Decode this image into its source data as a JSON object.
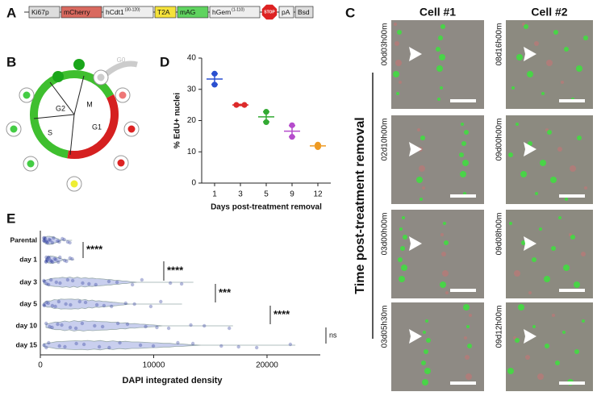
{
  "panel_labels": [
    "A",
    "B",
    "C",
    "D",
    "E"
  ],
  "construct": {
    "parts": [
      {
        "label": "Ki67p"
      },
      {
        "label": "mCherry"
      },
      {
        "label": "hCdt1",
        "sup": "(30-120)"
      },
      {
        "label": "T2A"
      },
      {
        "label": "mAG"
      },
      {
        "label": "hGem",
        "sup": "(1-110)"
      },
      {
        "label": "STOP"
      },
      {
        "label": "pA"
      },
      {
        "label": "Bsd"
      }
    ]
  },
  "cell_cycle": {
    "phases": [
      "G0",
      "G2",
      "M",
      "S",
      "G1"
    ]
  },
  "timelapse": {
    "axis_label": "Time post-treatment removal",
    "columns": [
      {
        "title": "Cell #1",
        "times": [
          "00d03h00m",
          "02d10h00m",
          "03d00h00m",
          "03d05h30m"
        ]
      },
      {
        "title": "Cell #2",
        "times": [
          "08d16h00m",
          "09d00h00m",
          "09d08h00m",
          "09d12h00m"
        ]
      }
    ]
  },
  "chart_data": [
    {
      "type": "dot",
      "categories": [
        "1",
        "3",
        "5",
        "9",
        "12"
      ],
      "values": [
        [
          35,
          31.5
        ],
        [
          25,
          25
        ],
        [
          22.8,
          19.5
        ],
        [
          18.5,
          14.8
        ],
        [
          12.3,
          11.5
        ]
      ],
      "means": [
        33.3,
        25,
        21.2,
        16.6,
        11.9
      ],
      "errors": [
        1.7,
        0.2,
        1.6,
        1.8,
        0.4
      ],
      "colors": [
        "#2a4fd0",
        "#dd2a2a",
        "#33aa33",
        "#b54ccc",
        "#ee9a22"
      ],
      "ylim": [
        0,
        40
      ],
      "yticks": [
        0,
        10,
        20,
        30,
        40
      ],
      "ylabel": "% EdU+ nuclei",
      "xlabel": "Days post-treatment removal"
    },
    {
      "type": "violin",
      "categories": [
        "Parental",
        "day 1",
        "day 3",
        "day 5",
        "day 10",
        "day 15"
      ],
      "min": [
        300,
        500,
        300,
        300,
        500,
        300
      ],
      "max": [
        2800,
        3000,
        13500,
        12500,
        17000,
        22500
      ],
      "significance": [
        "****",
        "****",
        "***",
        "****",
        "ns"
      ],
      "color": "#2b3a9a",
      "xlim": [
        0,
        24700
      ],
      "xticks": [
        0,
        10000,
        20000
      ],
      "xlabel": "DAPI integrated density"
    }
  ]
}
